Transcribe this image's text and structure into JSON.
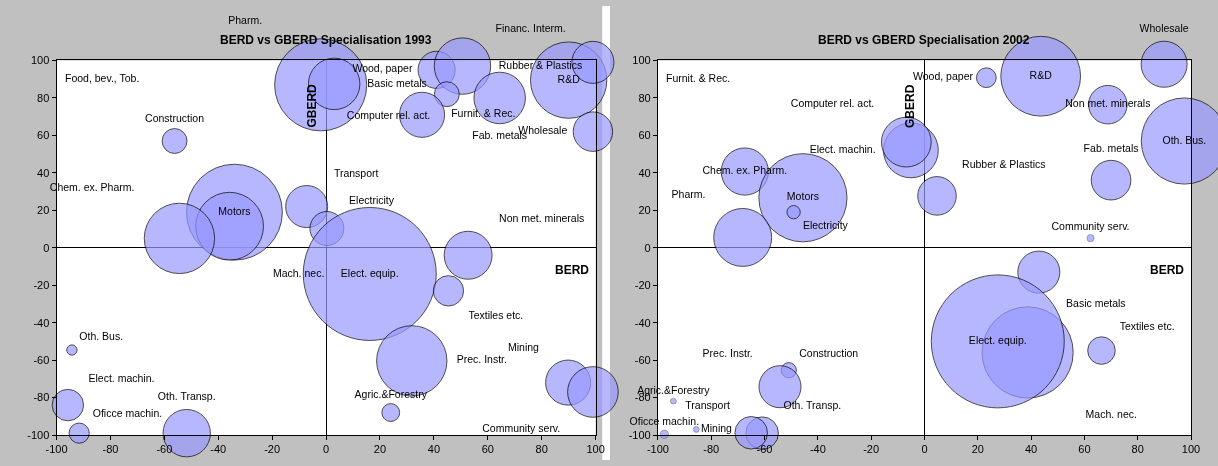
{
  "chart_data": [
    {
      "type": "bubble",
      "title": "BERD vs GBERD Specialisation 1993",
      "xlabel": "BERD",
      "ylabel": "GBERD",
      "marker": "circle",
      "xlim": [
        -100,
        100
      ],
      "ylim": [
        -100,
        100
      ],
      "xticks": [
        -100,
        -80,
        -60,
        -40,
        -20,
        0,
        20,
        40,
        60,
        80,
        100
      ],
      "yticks": [
        -100,
        -80,
        -60,
        -40,
        -20,
        0,
        20,
        40,
        60,
        80,
        100
      ],
      "series": [
        {
          "color": "#9999ff",
          "x": [
            -2,
            3,
            41,
            50.6,
            44.8,
            35.6,
            64.4,
            90,
            99,
            99,
            -56.2,
            -34,
            -35.8,
            -7.2,
            0.3,
            -54.4,
            16.2,
            52.7,
            45.4,
            31.8,
            24,
            89.8,
            99,
            -94.3,
            -95.8,
            -91.6,
            -51.7
          ],
          "values": [
            87,
            87.5,
            95,
            97,
            82,
            71,
            80,
            89.5,
            99,
            62,
            57,
            19,
            11.5,
            22,
            10.3,
            5,
            -14,
            -4,
            -23,
            -60.4,
            -88,
            -72,
            -77,
            -54.6,
            -84,
            -99,
            -99
          ],
          "sizes": [
            0.48,
            0.15,
            0.078,
            0.18,
            0.035,
            0.115,
            0.15,
            0.33,
            0.1,
            0.088,
            0.035,
            0.52,
            0.26,
            0.1,
            0.065,
            0.28,
            1,
            0.13,
            0.052,
            0.28,
            0.018,
            0.115,
            0.145,
            0.006,
            0.056,
            0.023,
            0.127
          ],
          "value_labels": [
            "Pharm.",
            "Basic metals",
            "Wood, paper",
            "Rubber & Plastics",
            "Computer rel. act.",
            "Furnit. & Rec.",
            "Fab. metals",
            "R&D",
            "Financ. Interm.",
            "Wholesale",
            "Construction",
            "Motors",
            "Mach. nec.",
            "Transport",
            "Electricity",
            "Chem. ex. Pharm.",
            "Elect. equip.",
            "Non met. minerals",
            "Textiles etc.",
            "Prec. Instr.",
            "Agric.&Forestry",
            "Mining",
            "Community serv.",
            "Oth. Bus.",
            "Elect. machin.",
            "Oficce machin.",
            "Oth. Transp."
          ]
        }
      ],
      "annotations": [
        "Food, bev., Tob."
      ]
    },
    {
      "type": "bubble",
      "title": "BERD vs GBERD Specialisation 2002",
      "xlabel": "BERD",
      "ylabel": "GBERD",
      "marker": "circle",
      "xlim": [
        -100,
        100
      ],
      "ylim": [
        -100,
        100
      ],
      "xticks": [
        -100,
        -80,
        -60,
        -40,
        -20,
        0,
        20,
        40,
        60,
        80,
        100
      ],
      "yticks": [
        -100,
        -80,
        -60,
        -40,
        -20,
        0,
        20,
        40,
        60,
        80,
        100
      ],
      "series": [
        {
          "color": "#9999ff",
          "x": [
            23.2,
            43.6,
            68.8,
            89.9,
            97.5,
            70,
            4.7,
            -5.1,
            -6.8,
            -67.4,
            -45.6,
            -49.1,
            -68.2,
            62.3,
            42.9,
            38.7,
            27.5,
            66.4,
            -50.9,
            -54.2,
            -94.2,
            -85.6,
            -60.9,
            -65,
            -97.6
          ],
          "values": [
            90.8,
            91.6,
            76.4,
            98,
            57,
            36.1,
            27.7,
            52,
            56.4,
            40.7,
            26.7,
            19,
            5.5,
            5.1,
            -13,
            -55.9,
            -50,
            -54.9,
            -65.4,
            -74.2,
            -81.9,
            -97,
            -99,
            -98.8,
            -99.6
          ],
          "sizes": [
            0.022,
            0.36,
            0.084,
            0.12,
            0.42,
            0.089,
            0.084,
            0.17,
            0.14,
            0.126,
            0.44,
            0.01,
            0.19,
            0.003,
            0.1,
            0.47,
            1,
            0.043,
            0.013,
            0.1,
            0.002,
            0.002,
            0.06,
            0.06,
            0.004
          ],
          "value_labels": [
            "Wood, paper",
            "R&D",
            "Non met. minerals",
            "Wholesale",
            "Oth. Bus.",
            "Fab. metals",
            "Rubber & Plastics",
            "Elect. machin.",
            "Computer rel. act.",
            "Chem. ex. Pharm.",
            "Motors",
            "Electricity",
            "Pharm.",
            "Community serv.",
            "Basic metals",
            "Mach. nec.",
            "Elect. equip.",
            "Textiles etc.",
            "Construction",
            "Prec. Instr.",
            "Agric.&Forestry",
            "Mining",
            "Oth. Transp.",
            "Transport",
            "Oficce machin."
          ]
        }
      ],
      "annotations": [
        "Furnit. & Rec."
      ]
    }
  ]
}
